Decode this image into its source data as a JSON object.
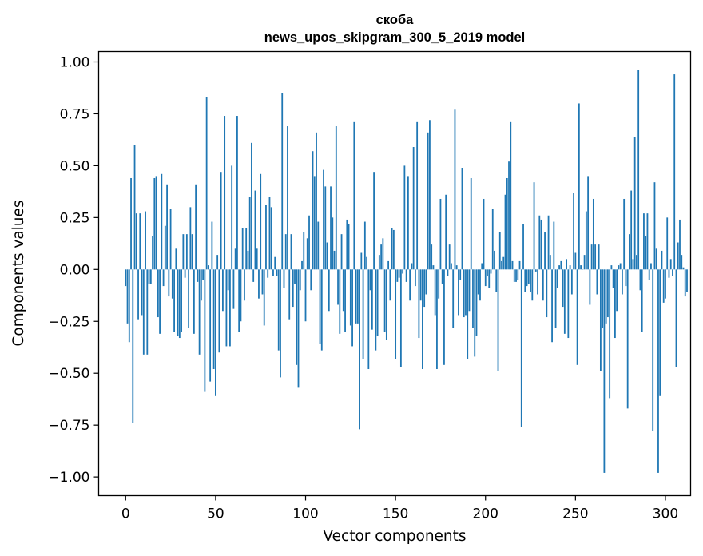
{
  "chart_data": {
    "type": "bar",
    "title": "скоба",
    "subtitle": "news_upos_skipgram_300_5_2019 model",
    "xlabel": "Vector components",
    "ylabel": "Components values",
    "xlim": [
      -15,
      314
    ],
    "ylim": [
      -1.09,
      1.05
    ],
    "xticks": [
      0,
      50,
      100,
      150,
      200,
      250,
      300
    ],
    "yticks": [
      1.0,
      0.75,
      0.5,
      0.25,
      0.0,
      -0.25,
      -0.5,
      -0.75,
      -1.0
    ],
    "ytick_labels": [
      "1.00",
      "0.75",
      "0.50",
      "0.25",
      "0.00",
      "−0.25",
      "−0.50",
      "−0.75",
      "−1.00"
    ],
    "bar_color": "#1f77b4",
    "grid": false,
    "values": [
      -0.08,
      -0.26,
      -0.35,
      0.44,
      -0.74,
      0.6,
      0.27,
      -0.24,
      0.27,
      -0.22,
      -0.41,
      0.28,
      -0.41,
      -0.07,
      -0.07,
      0.16,
      0.44,
      0.45,
      -0.23,
      -0.31,
      0.46,
      -0.08,
      0.21,
      0.41,
      -0.13,
      0.29,
      -0.14,
      -0.3,
      0.1,
      -0.32,
      -0.33,
      -0.3,
      0.17,
      -0.04,
      0.17,
      -0.28,
      0.3,
      0.17,
      -0.31,
      0.41,
      -0.06,
      -0.41,
      -0.15,
      -0.05,
      -0.59,
      0.83,
      0.02,
      -0.54,
      0.23,
      -0.48,
      -0.61,
      0.07,
      -0.4,
      0.47,
      -0.2,
      0.74,
      -0.37,
      -0.1,
      -0.37,
      0.5,
      -0.19,
      0.1,
      0.74,
      -0.3,
      -0.25,
      0.2,
      -0.15,
      0.2,
      0.09,
      0.35,
      0.61,
      -0.06,
      0.38,
      0.1,
      -0.14,
      0.46,
      -0.12,
      -0.27,
      0.31,
      -0.04,
      0.35,
      0.3,
      -0.03,
      0.06,
      -0.03,
      -0.39,
      -0.52,
      0.85,
      -0.09,
      0.17,
      0.69,
      -0.24,
      0.17,
      -0.18,
      -0.07,
      -0.46,
      -0.57,
      -0.1,
      0.04,
      0.18,
      -0.25,
      0.15,
      0.26,
      -0.1,
      0.57,
      0.45,
      0.66,
      0.23,
      -0.36,
      -0.39,
      0.48,
      0.4,
      0.13,
      -0.2,
      0.4,
      0.25,
      0.09,
      0.69,
      -0.17,
      -0.31,
      0.17,
      -0.2,
      -0.3,
      0.24,
      0.22,
      -0.27,
      -0.37,
      0.71,
      -0.26,
      -0.26,
      -0.77,
      0.08,
      -0.43,
      0.23,
      0.06,
      -0.48,
      -0.1,
      -0.29,
      0.47,
      -0.39,
      -0.32,
      0.07,
      0.12,
      0.15,
      -0.3,
      -0.34,
      0.04,
      -0.15,
      0.2,
      0.19,
      -0.43,
      -0.06,
      -0.04,
      -0.47,
      -0.02,
      0.5,
      -0.06,
      0.45,
      -0.15,
      0.03,
      0.59,
      -0.08,
      0.71,
      -0.33,
      -0.15,
      -0.48,
      -0.18,
      -0.12,
      0.66,
      0.72,
      0.12,
      0.02,
      -0.22,
      -0.48,
      -0.14,
      0.34,
      -0.07,
      -0.46,
      0.36,
      -0.03,
      0.12,
      0.03,
      -0.28,
      0.77,
      0.02,
      -0.22,
      -0.05,
      0.49,
      -0.23,
      -0.22,
      -0.43,
      -0.2,
      0.44,
      -0.28,
      -0.42,
      -0.32,
      -0.12,
      -0.15,
      0.03,
      0.34,
      -0.08,
      -0.03,
      -0.09,
      -0.02,
      0.29,
      0.09,
      -0.11,
      -0.49,
      0.18,
      0.04,
      0.06,
      0.36,
      0.44,
      0.52,
      0.71,
      0.04,
      -0.06,
      -0.06,
      -0.05,
      0.04,
      -0.76,
      0.22,
      -0.11,
      -0.08,
      -0.07,
      -0.11,
      -0.15,
      0.42,
      -0.01,
      -0.12,
      0.26,
      0.24,
      -0.15,
      0.18,
      -0.23,
      0.26,
      0.07,
      -0.35,
      0.23,
      -0.28,
      -0.09,
      0.02,
      0.04,
      -0.18,
      -0.31,
      0.05,
      -0.33,
      0.02,
      -0.12,
      0.37,
      0.08,
      -0.46,
      0.8,
      0.02,
      0.0,
      0.07,
      0.28,
      0.45,
      -0.17,
      0.12,
      0.34,
      0.12,
      -0.12,
      0.12,
      -0.49,
      -0.28,
      -0.98,
      -0.26,
      -0.23,
      -0.62,
      0.02,
      -0.09,
      -0.33,
      -0.2,
      0.02,
      0.03,
      -0.12,
      0.34,
      -0.08,
      -0.67,
      0.17,
      0.38,
      0.05,
      0.64,
      0.07,
      0.96,
      -0.1,
      -0.3,
      0.27,
      0.16,
      0.27,
      -0.05,
      0.03,
      -0.78,
      0.42,
      0.1,
      -0.98,
      -0.61,
      0.09,
      -0.16,
      -0.14,
      0.25,
      -0.04,
      0.05,
      -0.03,
      0.94,
      -0.47,
      0.13,
      0.24,
      0.07,
      0.01,
      -0.13,
      -0.11
    ]
  }
}
